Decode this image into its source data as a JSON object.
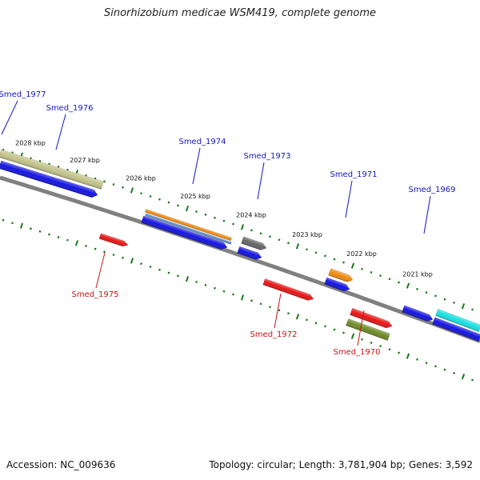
{
  "header": {
    "title": "Sinorhizobium medicae WSM419, complete genome"
  },
  "footer": {
    "accession": "Accession: NC_009636",
    "topology": "Topology: circular; Length: 3,781,904 bp; Genes: 3,592"
  },
  "colors": {
    "label_plus": "#1414c8",
    "label_minus": "#c81414",
    "backbone": "#808080",
    "tick": "#1a7a1a",
    "gene_blue": "#1515e0",
    "gene_red": "#e81515",
    "gene_khaki": "#c2c289",
    "gene_orange": "#f08a10",
    "gene_steel": "#5b8cc8",
    "gene_gray": "#666666",
    "gene_olive": "#6e8a24",
    "gene_cyan": "#18e0e0"
  },
  "ruler": {
    "ticks": [
      "2028 kbp",
      "2027 kbp",
      "2026 kbp",
      "2025 kbp",
      "2024 kbp",
      "2023 kbp",
      "2022 kbp",
      "2021 kbp"
    ]
  },
  "genes": [
    {
      "label": "Smed_1977",
      "strand": "+"
    },
    {
      "label": "Smed_1976",
      "strand": "+"
    },
    {
      "label": "Smed_1975",
      "strand": "-"
    },
    {
      "label": "Smed_1974",
      "strand": "+"
    },
    {
      "label": "Smed_1973",
      "strand": "+"
    },
    {
      "label": "Smed_1972",
      "strand": "-"
    },
    {
      "label": "Smed_1971",
      "strand": "+"
    },
    {
      "label": "Smed_1970",
      "strand": "-"
    },
    {
      "label": "Smed_1969",
      "strand": "+"
    }
  ]
}
